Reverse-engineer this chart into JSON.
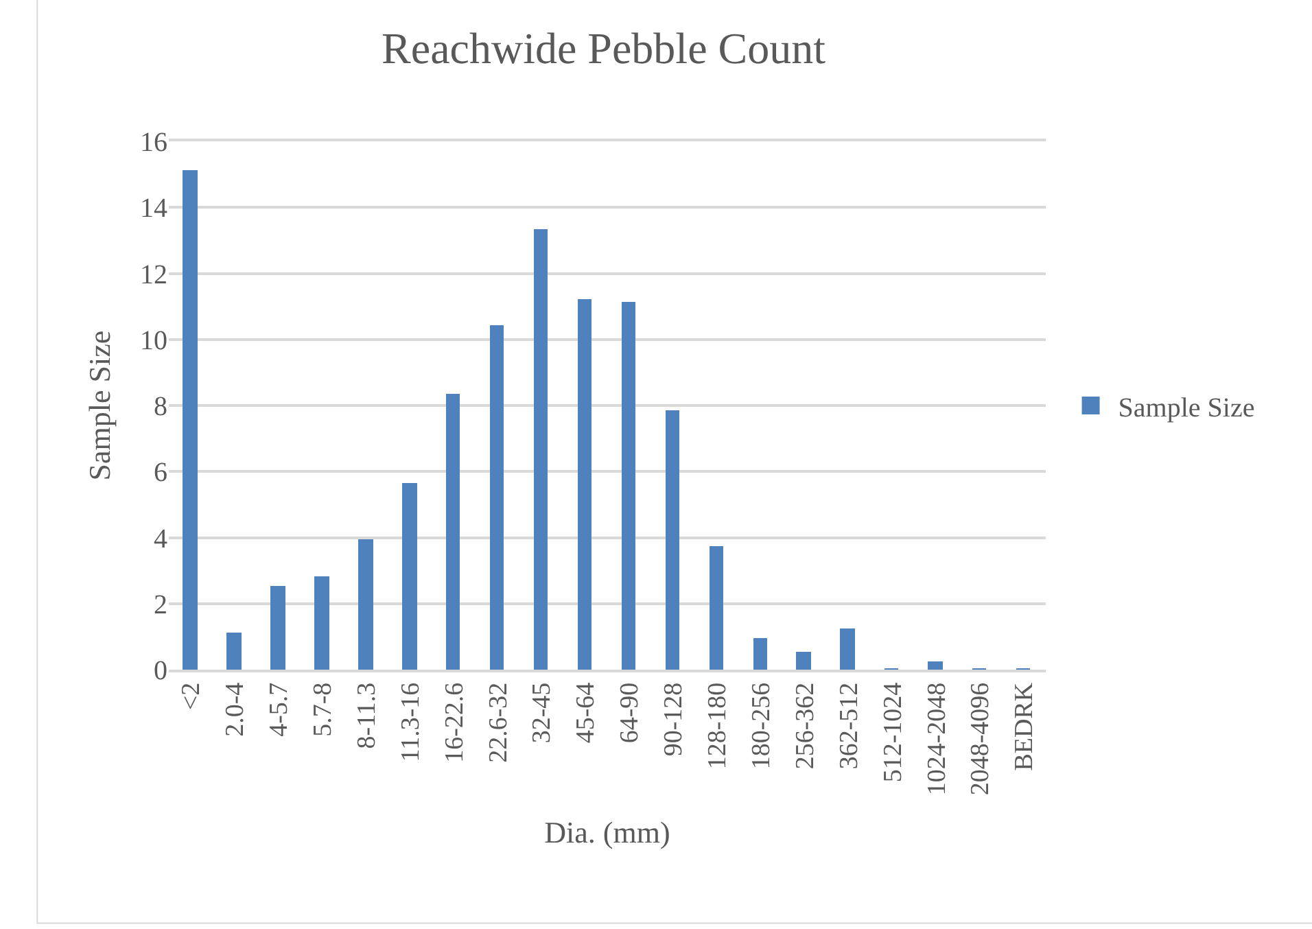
{
  "chart_data": {
    "type": "bar",
    "title": "Reachwide Pebble Count",
    "xlabel": "Dia. (mm)",
    "ylabel": "Sample Size",
    "categories": [
      "<2",
      "2.0-4",
      "4-5.7",
      "5.7-8",
      "8-11.3",
      "11.3-16",
      "16-22.6",
      "22.6-32",
      "32-45",
      "45-64",
      "64-90",
      "90-128",
      "128-180",
      "180-256",
      "256-362",
      "362-512",
      "512-1024",
      "1024-2048",
      "2048-4096",
      "BEDRK"
    ],
    "series": [
      {
        "name": "Sample Size",
        "color": "#4f81bd",
        "values": [
          15.1,
          1.1,
          2.5,
          2.8,
          3.9,
          5.6,
          8.3,
          10.4,
          13.3,
          11.2,
          11.1,
          7.8,
          3.7,
          0.9,
          0.5,
          1.2,
          0,
          0.2,
          0,
          0
        ]
      }
    ],
    "ylim": [
      0,
      16
    ],
    "yticks": [
      0,
      2,
      4,
      6,
      8,
      10,
      12,
      14,
      16
    ],
    "grid": "y",
    "legend": "right"
  }
}
